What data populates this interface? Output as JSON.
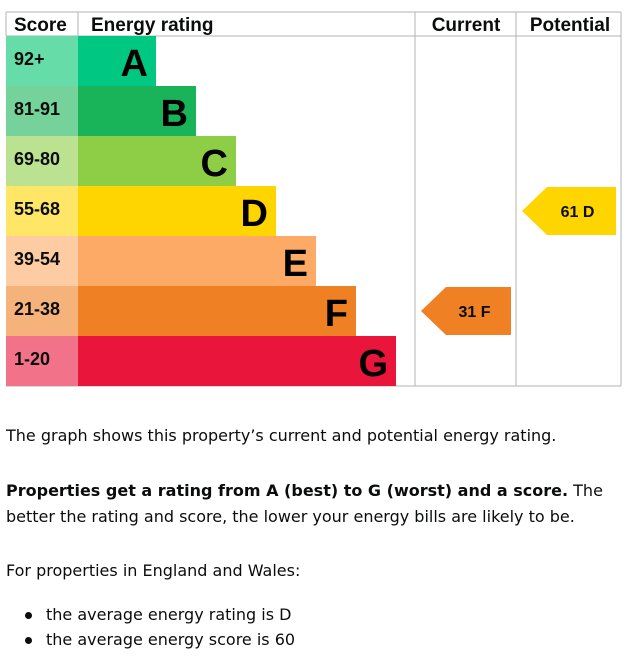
{
  "chart_data": {
    "type": "bar",
    "headers": {
      "score": "Score",
      "rating": "Energy rating",
      "current": "Current",
      "potential": "Potential"
    },
    "bands": [
      {
        "letter": "A",
        "range": "92+",
        "color": "#00c781",
        "score_bg": "#66dda9"
      },
      {
        "letter": "B",
        "range": "81-91",
        "color": "#19b459",
        "score_bg": "#75d29b"
      },
      {
        "letter": "C",
        "range": "69-80",
        "color": "#8dce46",
        "score_bg": "#bbe290"
      },
      {
        "letter": "D",
        "range": "55-68",
        "color": "#ffd500",
        "score_bg": "#ffe666"
      },
      {
        "letter": "E",
        "range": "39-54",
        "color": "#fcaa65",
        "score_bg": "#fdcca3"
      },
      {
        "letter": "F",
        "range": "21-38",
        "color": "#ef8023",
        "score_bg": "#f5b37b"
      },
      {
        "letter": "G",
        "range": "1-20",
        "color": "#e9153b",
        "score_bg": "#f27389"
      }
    ],
    "current": {
      "score": 31,
      "band": "F",
      "label": "31 F",
      "color": "#ef8023"
    },
    "potential": {
      "score": 61,
      "band": "D",
      "label": "61 D",
      "color": "#ffd500"
    }
  },
  "text": {
    "intro": "The graph shows this property’s current and potential energy rating.",
    "rating_bold": "Properties get a rating from A (best) to G (worst) and a score.",
    "rating_rest": " The better the rating and score, the lower your energy bills are likely to be.",
    "region": "For properties in England and Wales:",
    "bullets": [
      "the average energy rating is D",
      "the average energy score is 60"
    ]
  }
}
